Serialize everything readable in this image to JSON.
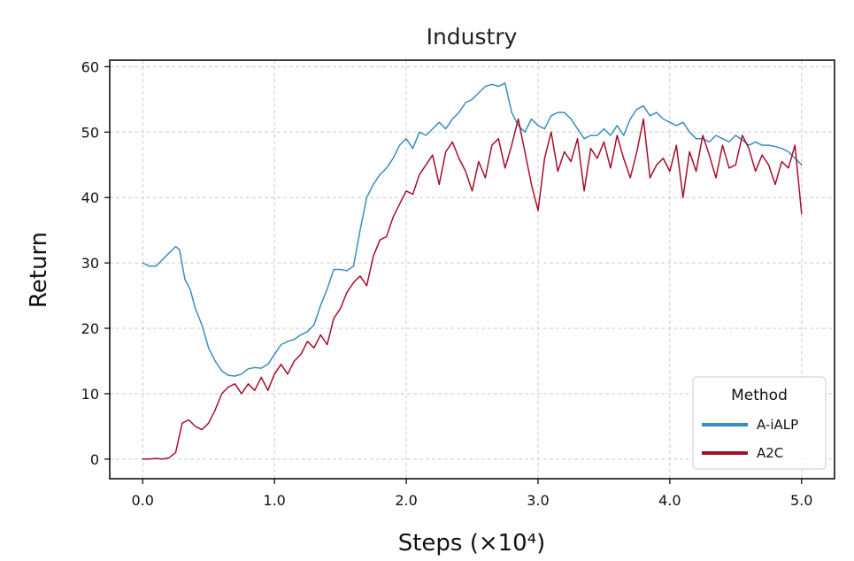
{
  "chart_data": {
    "type": "line",
    "title": "Industry",
    "xlabel": "Steps (×10⁴)",
    "ylabel": "Return",
    "xlim": [
      -0.25,
      5.25
    ],
    "ylim": [
      -3,
      61
    ],
    "xticks": [
      0.0,
      1.0,
      2.0,
      3.0,
      4.0,
      5.0
    ],
    "xtick_labels": [
      "0.0",
      "1.0",
      "2.0",
      "3.0",
      "4.0",
      "5.0"
    ],
    "yticks": [
      0,
      10,
      20,
      30,
      40,
      50,
      60
    ],
    "ytick_labels": [
      "0",
      "10",
      "20",
      "30",
      "40",
      "50",
      "60"
    ],
    "grid": true,
    "legend": {
      "title": "Method",
      "position": "lower right"
    },
    "series": [
      {
        "name": "A-iALP",
        "color": "#3a8dbf",
        "x": [
          0.0,
          0.05,
          0.1,
          0.15,
          0.2,
          0.25,
          0.28,
          0.32,
          0.36,
          0.4,
          0.45,
          0.5,
          0.55,
          0.6,
          0.65,
          0.7,
          0.75,
          0.8,
          0.85,
          0.9,
          0.95,
          1.0,
          1.05,
          1.1,
          1.15,
          1.2,
          1.25,
          1.3,
          1.35,
          1.4,
          1.45,
          1.5,
          1.55,
          1.6,
          1.65,
          1.7,
          1.75,
          1.8,
          1.85,
          1.9,
          1.95,
          2.0,
          2.05,
          2.1,
          2.15,
          2.2,
          2.25,
          2.3,
          2.35,
          2.4,
          2.45,
          2.5,
          2.55,
          2.6,
          2.65,
          2.7,
          2.75,
          2.8,
          2.85,
          2.9,
          2.95,
          3.0,
          3.05,
          3.1,
          3.15,
          3.2,
          3.25,
          3.3,
          3.35,
          3.4,
          3.45,
          3.5,
          3.55,
          3.6,
          3.65,
          3.7,
          3.75,
          3.8,
          3.85,
          3.9,
          3.95,
          4.0,
          4.05,
          4.1,
          4.15,
          4.2,
          4.25,
          4.3,
          4.35,
          4.4,
          4.45,
          4.5,
          4.55,
          4.6,
          4.65,
          4.7,
          4.75,
          4.8,
          4.85,
          4.9,
          4.95,
          5.0
        ],
        "y": [
          30.0,
          29.5,
          29.5,
          30.5,
          31.5,
          32.5,
          32.0,
          27.5,
          26.0,
          23.0,
          20.5,
          17.0,
          15.0,
          13.5,
          12.8,
          12.7,
          13.0,
          13.8,
          14.0,
          13.9,
          14.5,
          16.0,
          17.5,
          18.0,
          18.3,
          19.0,
          19.5,
          20.5,
          23.5,
          26.0,
          29.0,
          29.0,
          28.8,
          29.5,
          35.0,
          40.0,
          42.0,
          43.5,
          44.5,
          46.0,
          48.0,
          49.0,
          47.5,
          50.0,
          49.5,
          50.5,
          51.5,
          50.5,
          52.0,
          53.0,
          54.5,
          55.0,
          56.0,
          57.0,
          57.3,
          57.0,
          57.5,
          53.0,
          51.0,
          50.0,
          52.0,
          51.0,
          50.5,
          52.5,
          53.0,
          53.0,
          52.0,
          50.5,
          49.0,
          49.5,
          49.5,
          50.5,
          49.5,
          51.0,
          49.5,
          52.0,
          53.5,
          54.0,
          52.5,
          53.0,
          52.0,
          51.5,
          51.0,
          51.5,
          50.0,
          49.0,
          49.0,
          48.5,
          49.5,
          49.0,
          48.5,
          49.5,
          48.8,
          48.0,
          48.5,
          48.0,
          48.0,
          47.8,
          47.5,
          47.0,
          46.0,
          45.0
        ]
      },
      {
        "name": "A2C",
        "color": "#a50f2c",
        "x": [
          0.0,
          0.05,
          0.1,
          0.15,
          0.2,
          0.25,
          0.3,
          0.35,
          0.4,
          0.45,
          0.5,
          0.55,
          0.6,
          0.65,
          0.7,
          0.75,
          0.8,
          0.85,
          0.9,
          0.95,
          1.0,
          1.05,
          1.1,
          1.15,
          1.2,
          1.25,
          1.3,
          1.35,
          1.4,
          1.45,
          1.5,
          1.55,
          1.6,
          1.65,
          1.7,
          1.75,
          1.8,
          1.85,
          1.9,
          1.95,
          2.0,
          2.05,
          2.1,
          2.15,
          2.2,
          2.25,
          2.3,
          2.35,
          2.4,
          2.45,
          2.5,
          2.55,
          2.6,
          2.65,
          2.7,
          2.75,
          2.8,
          2.85,
          2.9,
          2.95,
          3.0,
          3.05,
          3.1,
          3.15,
          3.2,
          3.25,
          3.3,
          3.35,
          3.4,
          3.45,
          3.5,
          3.55,
          3.6,
          3.65,
          3.7,
          3.75,
          3.8,
          3.85,
          3.9,
          3.95,
          4.0,
          4.05,
          4.1,
          4.15,
          4.2,
          4.25,
          4.3,
          4.35,
          4.4,
          4.45,
          4.5,
          4.55,
          4.6,
          4.65,
          4.7,
          4.75,
          4.8,
          4.85,
          4.9,
          4.95,
          5.0
        ],
        "y": [
          0.0,
          0.0,
          0.1,
          0.0,
          0.2,
          1.0,
          5.5,
          6.0,
          5.0,
          4.5,
          5.5,
          7.5,
          10.0,
          11.0,
          11.5,
          10.0,
          11.5,
          10.5,
          12.5,
          10.5,
          13.0,
          14.5,
          13.0,
          15.0,
          16.0,
          18.0,
          17.0,
          19.0,
          17.5,
          21.5,
          23.0,
          25.5,
          27.0,
          28.0,
          26.5,
          31.0,
          33.5,
          34.0,
          37.0,
          39.0,
          41.0,
          40.5,
          43.5,
          45.0,
          46.5,
          42.0,
          47.0,
          48.5,
          46.0,
          44.0,
          41.0,
          45.5,
          43.0,
          48.0,
          49.0,
          44.5,
          48.0,
          52.0,
          47.0,
          42.0,
          38.0,
          46.0,
          50.0,
          44.0,
          47.0,
          45.5,
          49.0,
          41.0,
          47.5,
          46.0,
          48.5,
          44.5,
          49.5,
          46.0,
          43.0,
          47.0,
          52.0,
          43.0,
          45.0,
          46.0,
          44.0,
          48.0,
          40.0,
          47.0,
          44.0,
          49.5,
          46.5,
          43.0,
          48.0,
          44.5,
          45.0,
          49.5,
          47.5,
          44.0,
          46.5,
          45.0,
          42.0,
          45.5,
          44.5,
          48.0,
          37.5
        ]
      }
    ]
  }
}
